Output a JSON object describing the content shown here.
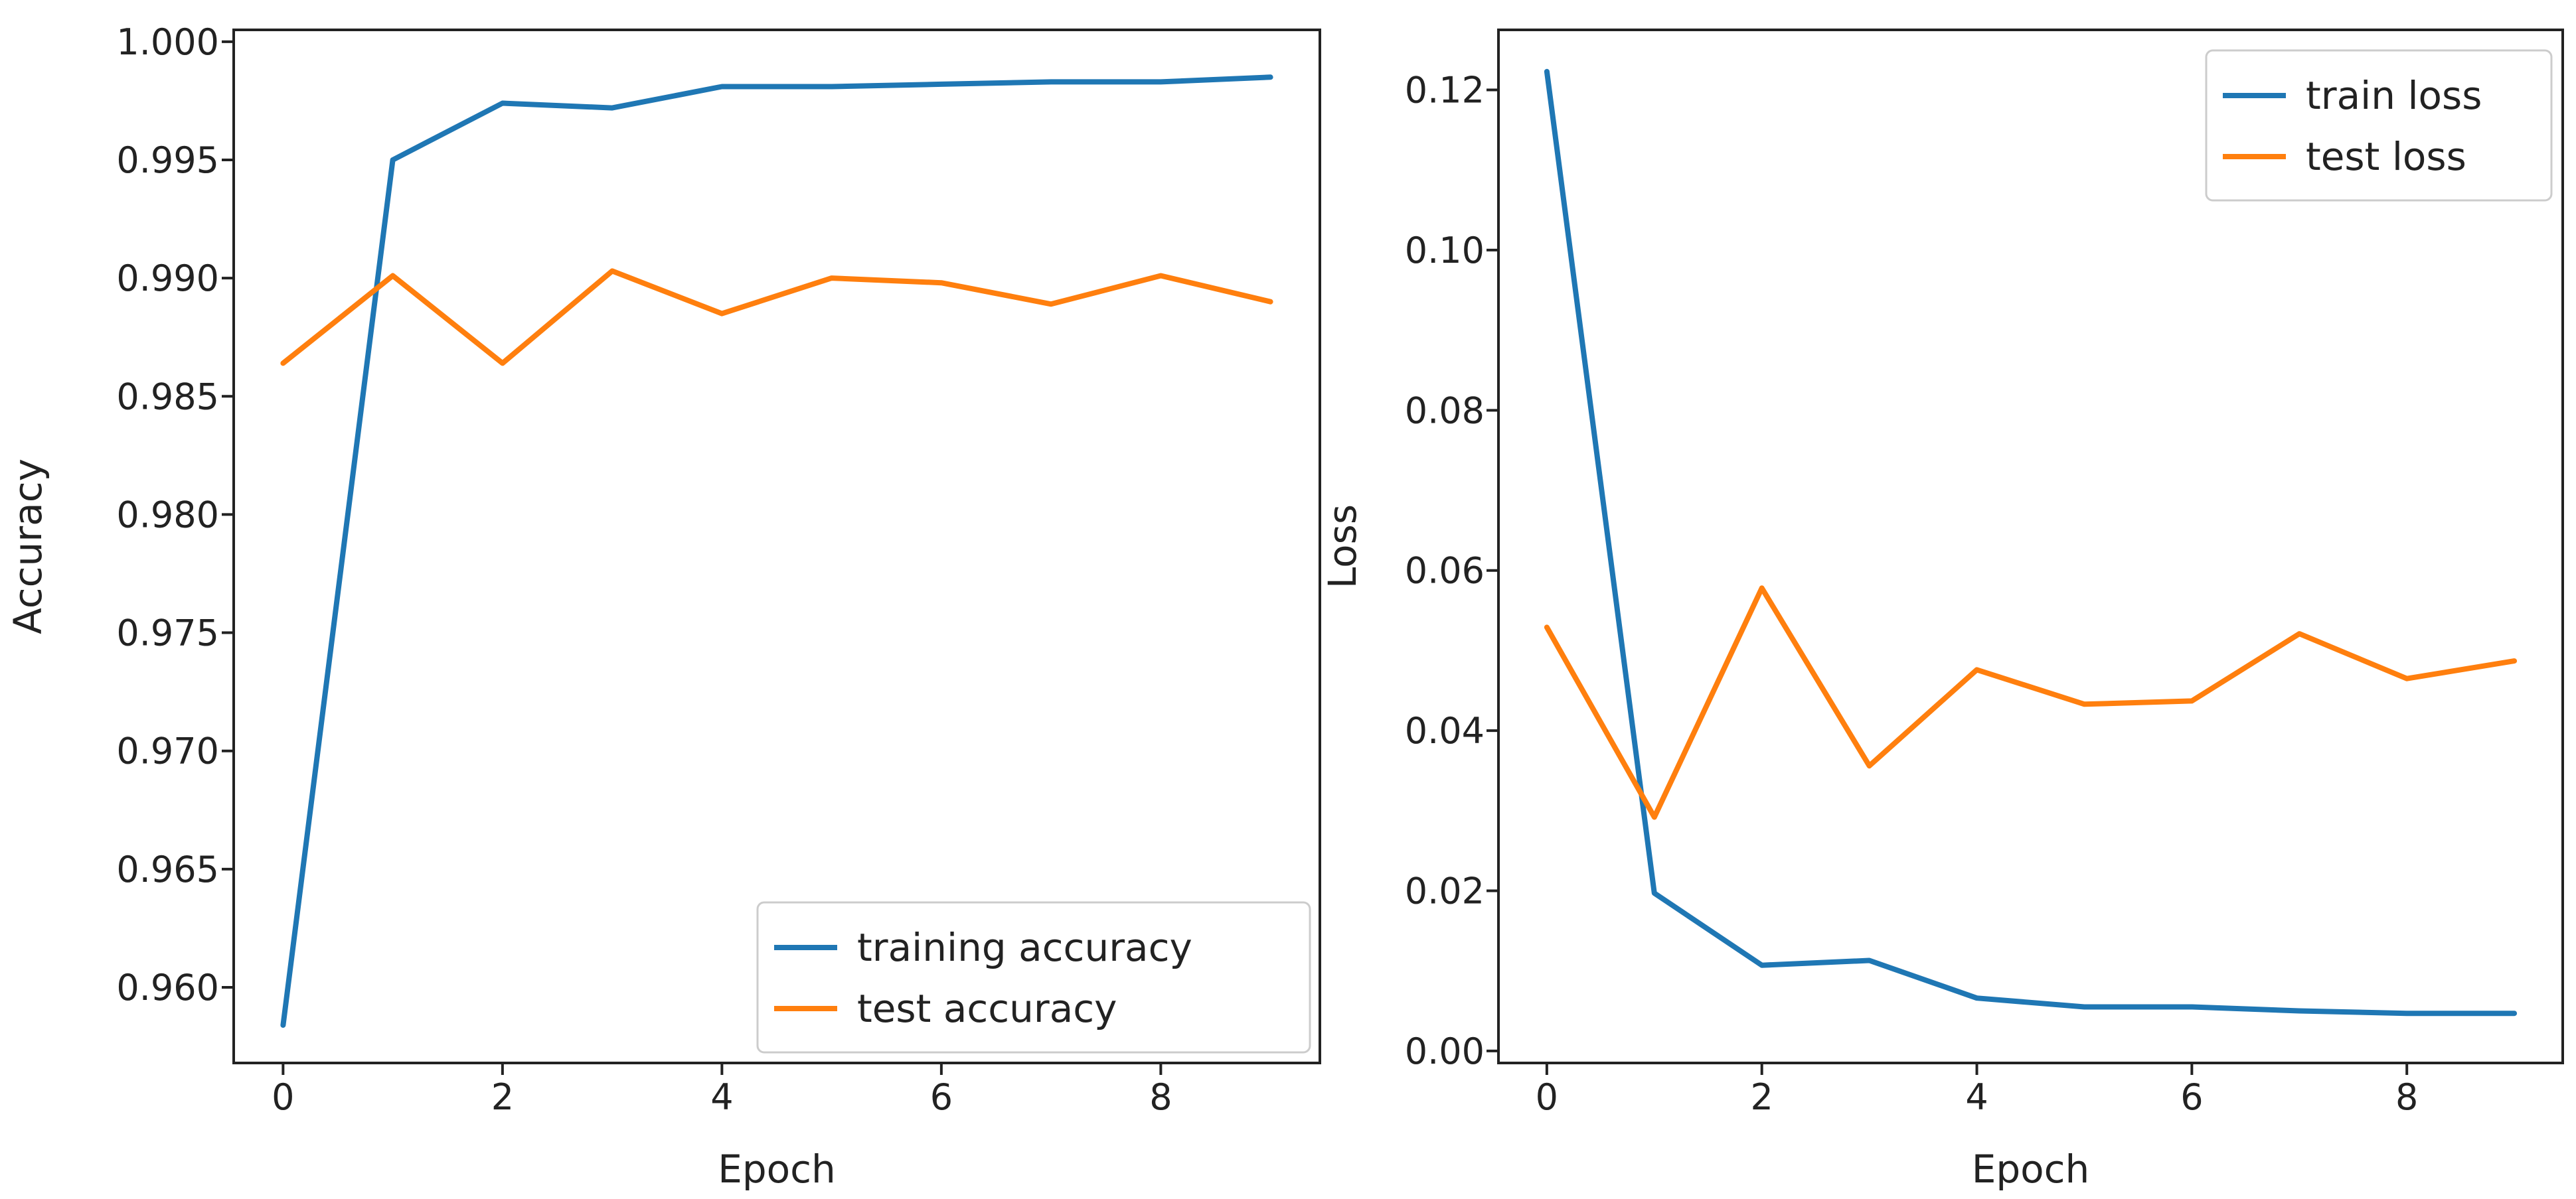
{
  "chart_data": [
    {
      "type": "line",
      "title": "",
      "xlabel": "Epoch",
      "ylabel": "Accuracy",
      "xlim": [
        -0.45,
        9.45
      ],
      "ylim": [
        0.9568,
        1.0005
      ],
      "x": [
        0,
        1,
        2,
        3,
        4,
        5,
        6,
        7,
        8,
        9
      ],
      "xticks": [
        0,
        2,
        4,
        6,
        8
      ],
      "xtick_labels": [
        "0",
        "2",
        "4",
        "6",
        "8"
      ],
      "yticks": [
        0.96,
        0.965,
        0.97,
        0.975,
        0.98,
        0.985,
        0.99,
        0.995,
        1.0
      ],
      "ytick_labels": [
        "0.960",
        "0.965",
        "0.970",
        "0.975",
        "0.980",
        "0.985",
        "0.990",
        "0.995",
        "1.000"
      ],
      "grid": false,
      "legend_position": "lower-right",
      "series": [
        {
          "name": "training accuracy",
          "color": "#1f77b4",
          "values": [
            0.9584,
            0.995,
            0.9974,
            0.9972,
            0.9981,
            0.9981,
            0.9982,
            0.9983,
            0.9983,
            0.9985
          ]
        },
        {
          "name": "test accuracy",
          "color": "#ff7f0e",
          "values": [
            0.9864,
            0.9901,
            0.9864,
            0.9903,
            0.9885,
            0.99,
            0.9898,
            0.9889,
            0.9901,
            0.989
          ]
        }
      ]
    },
    {
      "type": "line",
      "title": "",
      "xlabel": "Epoch",
      "ylabel": "Loss",
      "xlim": [
        -0.45,
        9.45
      ],
      "ylim": [
        -0.0015,
        0.1275
      ],
      "x": [
        0,
        1,
        2,
        3,
        4,
        5,
        6,
        7,
        8,
        9
      ],
      "xticks": [
        0,
        2,
        4,
        6,
        8
      ],
      "xtick_labels": [
        "0",
        "2",
        "4",
        "6",
        "8"
      ],
      "yticks": [
        0.0,
        0.02,
        0.04,
        0.06,
        0.08,
        0.1,
        0.12
      ],
      "ytick_labels": [
        "0.00",
        "0.02",
        "0.04",
        "0.06",
        "0.08",
        "0.10",
        "0.12"
      ],
      "grid": false,
      "legend_position": "upper-right",
      "series": [
        {
          "name": "train loss",
          "color": "#1f77b4",
          "values": [
            0.1223,
            0.0197,
            0.0107,
            0.0113,
            0.0066,
            0.0055,
            0.0055,
            0.005,
            0.0047,
            0.0047
          ]
        },
        {
          "name": "test loss",
          "color": "#ff7f0e",
          "values": [
            0.0529,
            0.0292,
            0.0578,
            0.0356,
            0.0476,
            0.0433,
            0.0437,
            0.0521,
            0.0465,
            0.0487
          ]
        }
      ]
    }
  ]
}
